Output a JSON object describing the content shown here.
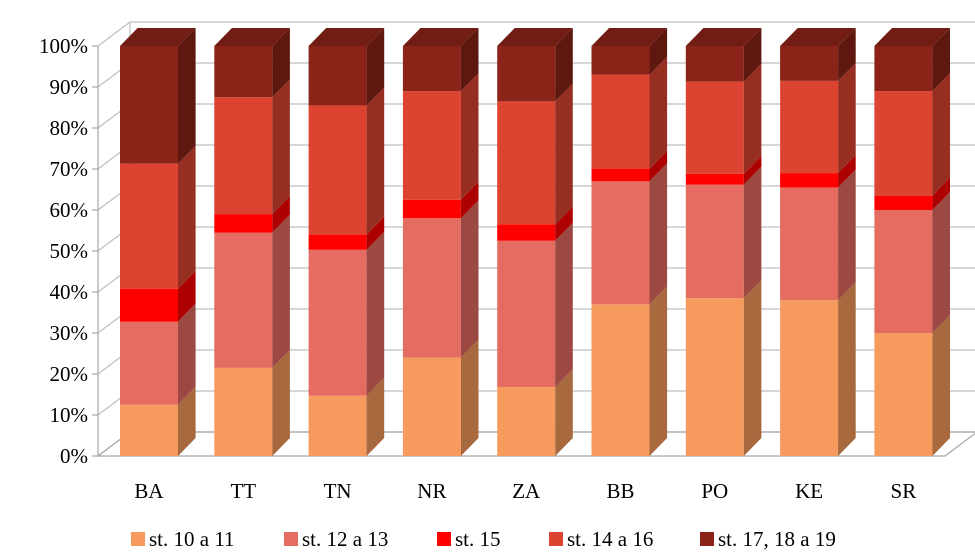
{
  "chart_data": {
    "type": "bar",
    "stacked": true,
    "percent": true,
    "three_d": true,
    "grid": true,
    "legend_position": "bottom",
    "categories": [
      "BA",
      "TT",
      "TN",
      "NR",
      "ZA",
      "BB",
      "PO",
      "KE",
      "SR"
    ],
    "y_ticks": [
      "0%",
      "10%",
      "20%",
      "30%",
      "40%",
      "50%",
      "60%",
      "70%",
      "80%",
      "90%",
      "100%"
    ],
    "ylim": [
      0,
      100
    ],
    "series": [
      {
        "name": "st. 10 a 11",
        "color": "#f79a5d",
        "values": [
          12.5,
          21.5,
          14.7,
          24.0,
          16.8,
          37.0,
          38.5,
          38.0,
          30.0
        ]
      },
      {
        "name": "st. 12 a 13",
        "color": "#e46c61",
        "values": [
          20.3,
          33.0,
          35.6,
          34.0,
          35.7,
          30.0,
          27.7,
          27.5,
          30.0
        ]
      },
      {
        "name": "st. 15",
        "color": "#ff0000",
        "values": [
          8.0,
          4.5,
          3.7,
          4.5,
          4.0,
          3.0,
          2.6,
          3.5,
          3.5
        ]
      },
      {
        "name": "st. 14 a 16",
        "color": "#dc4330",
        "values": [
          30.5,
          28.5,
          31.5,
          26.5,
          30.0,
          23.0,
          22.5,
          22.5,
          25.5
        ]
      },
      {
        "name": "st. 17, 18 a 19",
        "color": "#8b2318",
        "values": [
          28.7,
          12.5,
          14.5,
          11.0,
          13.5,
          7.0,
          8.7,
          8.5,
          11.0
        ]
      }
    ]
  }
}
